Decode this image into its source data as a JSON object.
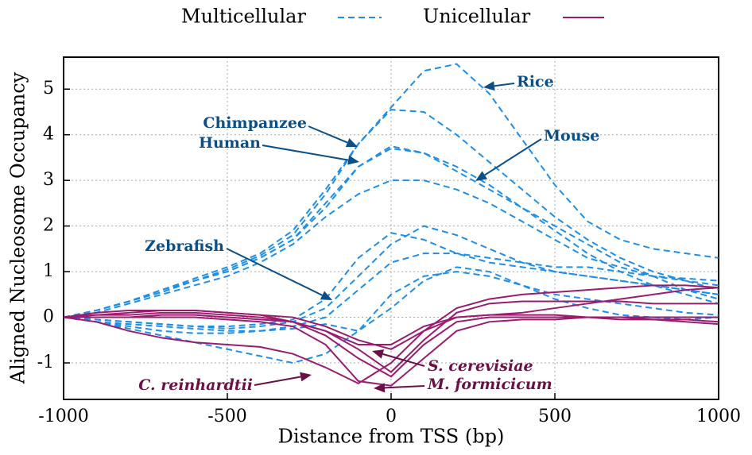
{
  "chart_data": {
    "type": "line",
    "x_label": "Distance from TSS (bp)",
    "y_label": "Aligned Nucleosome Occupancy",
    "xlim": [
      -1000,
      1000
    ],
    "ylim": [
      -1.8,
      5.7
    ],
    "xticks": [
      -1000,
      -500,
      0,
      500,
      1000
    ],
    "yticks": [
      -1,
      0,
      1,
      2,
      3,
      4,
      5
    ],
    "grid": true,
    "legend": [
      {
        "label": "Multicellular",
        "color": "#1e8fe8",
        "dashed": true
      },
      {
        "label": "Unicellular",
        "color": "#9b1b6e",
        "dashed": false
      }
    ],
    "x": [
      -1000,
      -900,
      -800,
      -700,
      -600,
      -500,
      -400,
      -300,
      -200,
      -100,
      0,
      100,
      200,
      300,
      400,
      500,
      600,
      700,
      800,
      900,
      1000
    ],
    "series": [
      {
        "group": 0,
        "values": [
          0,
          0.15,
          0.35,
          0.6,
          0.85,
          1.1,
          1.4,
          1.9,
          2.8,
          3.8,
          4.6,
          5.4,
          5.55,
          4.9,
          3.9,
          2.9,
          2.1,
          1.7,
          1.5,
          1.4,
          1.3
        ]
      },
      {
        "group": 0,
        "values": [
          0,
          0.15,
          0.35,
          0.6,
          0.8,
          1.05,
          1.35,
          1.8,
          2.7,
          3.8,
          4.55,
          4.5,
          4.0,
          3.4,
          2.8,
          2.2,
          1.7,
          1.3,
          1.0,
          0.8,
          0.6
        ]
      },
      {
        "group": 0,
        "values": [
          0,
          0.15,
          0.35,
          0.55,
          0.8,
          1.0,
          1.3,
          1.7,
          2.5,
          3.3,
          3.75,
          3.6,
          3.3,
          2.9,
          2.4,
          1.9,
          1.4,
          1.0,
          0.7,
          0.5,
          0.3
        ]
      },
      {
        "group": 0,
        "values": [
          0,
          0.15,
          0.35,
          0.55,
          0.8,
          1.0,
          1.3,
          1.7,
          2.4,
          3.3,
          3.7,
          3.6,
          3.2,
          2.8,
          2.4,
          2.0,
          1.6,
          1.2,
          0.9,
          0.6,
          0.4
        ]
      },
      {
        "group": 0,
        "values": [
          0,
          0.1,
          0.3,
          0.5,
          0.7,
          0.9,
          1.2,
          1.6,
          2.2,
          2.7,
          3.0,
          3.0,
          2.8,
          2.5,
          2.1,
          1.7,
          1.3,
          1.1,
          0.9,
          0.8,
          0.7
        ]
      },
      {
        "group": 0,
        "values": [
          0,
          -0.05,
          -0.1,
          -0.15,
          -0.2,
          -0.2,
          -0.15,
          -0.05,
          0.4,
          1.3,
          1.85,
          1.7,
          1.4,
          1.2,
          1.1,
          1.0,
          0.9,
          0.8,
          0.7,
          0.6,
          0.5
        ]
      },
      {
        "group": 0,
        "values": [
          0,
          -0.05,
          -0.1,
          -0.15,
          -0.2,
          -0.25,
          -0.2,
          -0.1,
          0.2,
          0.9,
          1.6,
          2.0,
          1.8,
          1.5,
          1.2,
          1.0,
          0.9,
          0.8,
          0.7,
          0.6,
          0.5
        ]
      },
      {
        "group": 0,
        "values": [
          0,
          -0.1,
          -0.15,
          -0.2,
          -0.25,
          -0.3,
          -0.3,
          -0.2,
          0,
          0.6,
          1.2,
          1.4,
          1.4,
          1.3,
          1.2,
          1.1,
          1.1,
          1.0,
          0.9,
          0.85,
          0.8
        ]
      },
      {
        "group": 0,
        "values": [
          0,
          -0.1,
          -0.25,
          -0.4,
          -0.55,
          -0.7,
          -0.85,
          -1.0,
          -0.8,
          -0.3,
          0.5,
          0.9,
          1.0,
          0.9,
          0.7,
          0.5,
          0.4,
          0.3,
          0.2,
          0.1,
          0.05
        ]
      },
      {
        "group": 0,
        "values": [
          0,
          -0.1,
          -0.2,
          -0.3,
          -0.35,
          -0.35,
          -0.3,
          -0.25,
          -0.15,
          -0.3,
          0.2,
          0.8,
          1.1,
          1.0,
          0.7,
          0.4,
          0.2,
          0.05,
          0,
          -0.05,
          0
        ]
      },
      {
        "group": 1,
        "values": [
          0,
          0.1,
          0.15,
          0.15,
          0.15,
          0.1,
          0.05,
          0,
          -0.2,
          -0.5,
          -0.7,
          -0.3,
          0.2,
          0.4,
          0.5,
          0.55,
          0.6,
          0.65,
          0.7,
          0.7,
          0.65
        ]
      },
      {
        "group": 1,
        "values": [
          0,
          0.05,
          0.1,
          0.15,
          0.15,
          0.1,
          0.05,
          -0.1,
          -0.3,
          -0.6,
          -0.6,
          -0.2,
          0,
          0.05,
          0.05,
          0.05,
          0,
          0,
          -0.05,
          -0.05,
          -0.1
        ]
      },
      {
        "group": 1,
        "values": [
          0,
          0.05,
          0.05,
          0.1,
          0.1,
          0.05,
          0,
          -0.1,
          -0.3,
          -0.7,
          -1.2,
          -0.5,
          0.1,
          0.3,
          0.35,
          0.35,
          0.35,
          0.35,
          0.3,
          0.3,
          0.3
        ]
      },
      {
        "group": 1,
        "values": [
          0,
          0,
          0,
          0.05,
          0.05,
          0,
          -0.05,
          -0.1,
          -0.4,
          -0.9,
          -1.3,
          -0.6,
          -0.1,
          0,
          0,
          0,
          0,
          -0.05,
          -0.05,
          -0.1,
          -0.15
        ]
      },
      {
        "group": 1,
        "values": [
          0,
          -0.1,
          -0.3,
          -0.45,
          -0.55,
          -0.6,
          -0.65,
          -0.8,
          -1.1,
          -1.45,
          -1.0,
          -0.3,
          0,
          0.05,
          0.1,
          0.2,
          0.3,
          0.4,
          0.5,
          0.6,
          0.65
        ]
      },
      {
        "group": 1,
        "values": [
          0,
          0,
          0,
          0,
          0,
          -0.05,
          -0.1,
          -0.2,
          -0.6,
          -1.4,
          -1.5,
          -0.9,
          -0.3,
          -0.1,
          -0.05,
          -0.05,
          0,
          0,
          0,
          0,
          0
        ]
      }
    ],
    "annotations": [
      {
        "text": "Rice",
        "color": "#0b4f86"
      },
      {
        "text": "Mouse",
        "color": "#0b4f86"
      },
      {
        "text": "Chimpanzee",
        "color": "#0b4f86"
      },
      {
        "text": "Human",
        "color": "#0b4f86"
      },
      {
        "text": "Zebrafish",
        "color": "#0b4f86"
      },
      {
        "text": "S. cerevisiae",
        "color": "#6b1046",
        "italic": true
      },
      {
        "text": "M. formicicum",
        "color": "#6b1046",
        "italic": true
      },
      {
        "text": "C. reinhardtii",
        "color": "#6b1046",
        "italic": true
      }
    ]
  }
}
